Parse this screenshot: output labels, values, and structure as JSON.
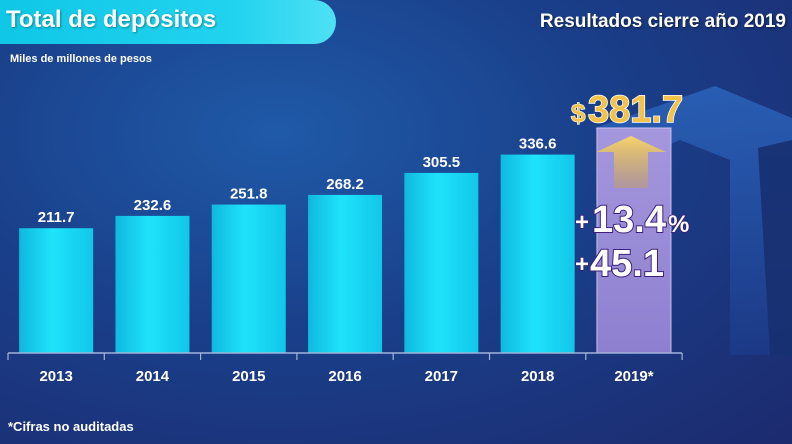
{
  "header": {
    "title": "Total de depósitos",
    "subtitle_right": "Resultados cierre año 2019"
  },
  "units_note": "Miles de millones de pesos",
  "footnote": "*Cifras no auditadas",
  "highlight": {
    "currency": "$",
    "total": "381.7",
    "growth_pct_sign": "+",
    "growth_pct": "13.4",
    "growth_pct_unit": "%",
    "growth_abs_sign": "+",
    "growth_abs": "45.1"
  },
  "colors": {
    "bar": "#18d6f2",
    "highlight_bar": "#9c8fd6",
    "arrow": "#f2c24a",
    "title_banner": "#17cbe8"
  },
  "chart_data": {
    "type": "bar",
    "categories": [
      "2013",
      "2014",
      "2015",
      "2016",
      "2017",
      "2018",
      "2019*"
    ],
    "values": [
      211.7,
      232.6,
      251.8,
      268.2,
      305.5,
      336.6,
      381.7
    ],
    "value_labels": [
      "211.7",
      "232.6",
      "251.8",
      "268.2",
      "305.5",
      "336.6",
      ""
    ],
    "highlight_category": "2019*",
    "title": "Total de depósitos",
    "ylabel": "Miles de millones de pesos",
    "ylim": [
      0,
      381.7
    ],
    "grid": false,
    "legend": "none"
  }
}
